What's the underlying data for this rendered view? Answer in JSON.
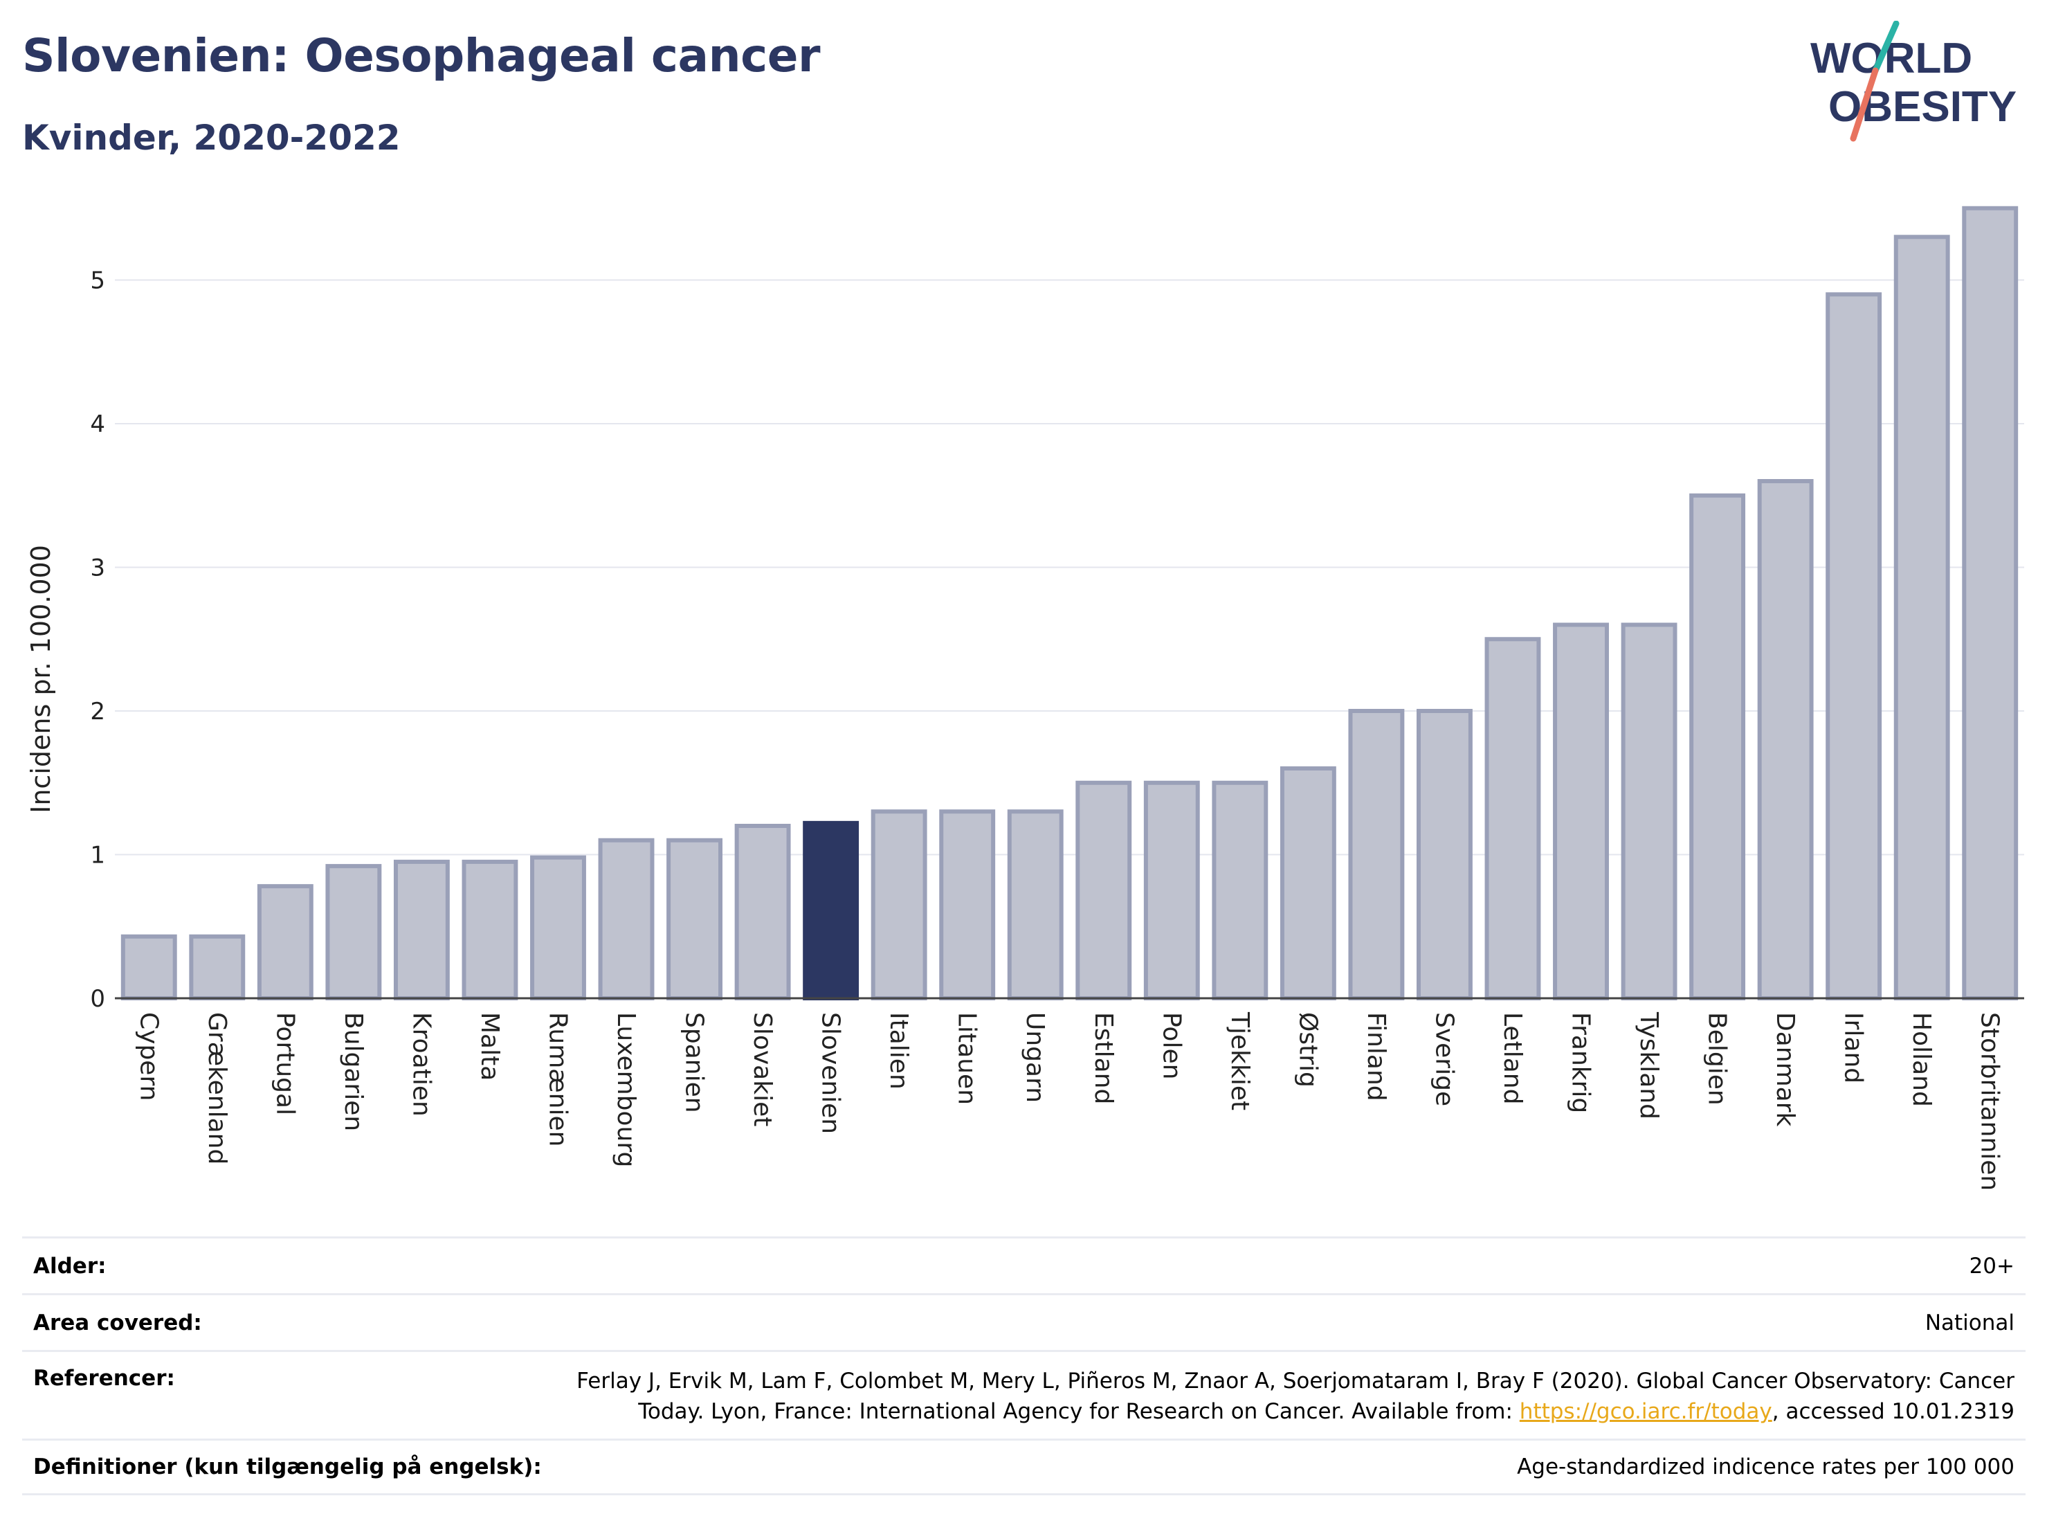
{
  "header": {
    "title": "Slovenien: Oesophageal cancer",
    "subtitle": "Kvinder, 2020-2022"
  },
  "logo": {
    "line1": "WORLD",
    "line2": "OBESITY",
    "slash_colors": [
      "#2ab3a6",
      "#e8735f"
    ],
    "text_color": "#2c3762"
  },
  "colors": {
    "bar_fill": "#bfc2cf",
    "bar_stroke": "#9aa0b8",
    "highlight": "#2c3762",
    "grid": "#e4e6ee",
    "axis": "#444444"
  },
  "chart_data": {
    "type": "bar",
    "ylabel": "Incidens pr. 100.000",
    "xlabel": "",
    "ylim": [
      0,
      5.6
    ],
    "yticks": [
      0,
      1,
      2,
      3,
      4,
      5
    ],
    "highlight": "Slovenien",
    "grid": true,
    "categories": [
      "Cypern",
      "Grækenland",
      "Portugal",
      "Bulgarien",
      "Kroatien",
      "Malta",
      "Rumænien",
      "Luxembourg",
      "Spanien",
      "Slovakiet",
      "Slovenien",
      "Italien",
      "Litauen",
      "Ungarn",
      "Estland",
      "Polen",
      "Tjekkiet",
      "Østrig",
      "Finland",
      "Sverige",
      "Letland",
      "Frankrig",
      "Tyskland",
      "Belgien",
      "Danmark",
      "Irland",
      "Holland",
      "Storbritannien"
    ],
    "values": [
      0.43,
      0.43,
      0.78,
      0.92,
      0.95,
      0.95,
      0.98,
      1.1,
      1.1,
      1.2,
      1.22,
      1.3,
      1.3,
      1.3,
      1.5,
      1.5,
      1.5,
      1.6,
      2.0,
      2.0,
      2.5,
      2.6,
      2.6,
      3.5,
      3.6,
      4.9,
      5.3,
      5.5
    ]
  },
  "meta": [
    {
      "label": "Alder:",
      "value": "20+"
    },
    {
      "label": "Area covered:",
      "value": "National"
    },
    {
      "label": "Referencer:",
      "value_line1": "Ferlay J, Ervik M, Lam F, Colombet M, Mery L, Piñeros M, Znaor A, Soerjomataram I, Bray F (2020). Global Cancer Observatory: Cancer",
      "value_line2_pre": "Today. Lyon, France: International Agency for Research on Cancer. Available from: ",
      "link": "https://gco.iarc.fr/today",
      "value_line2_post": ", accessed 10.01.2319"
    },
    {
      "label": "Definitioner (kun tilgængelig på engelsk):",
      "value": "Age-standardized indicence rates per 100 000"
    }
  ]
}
